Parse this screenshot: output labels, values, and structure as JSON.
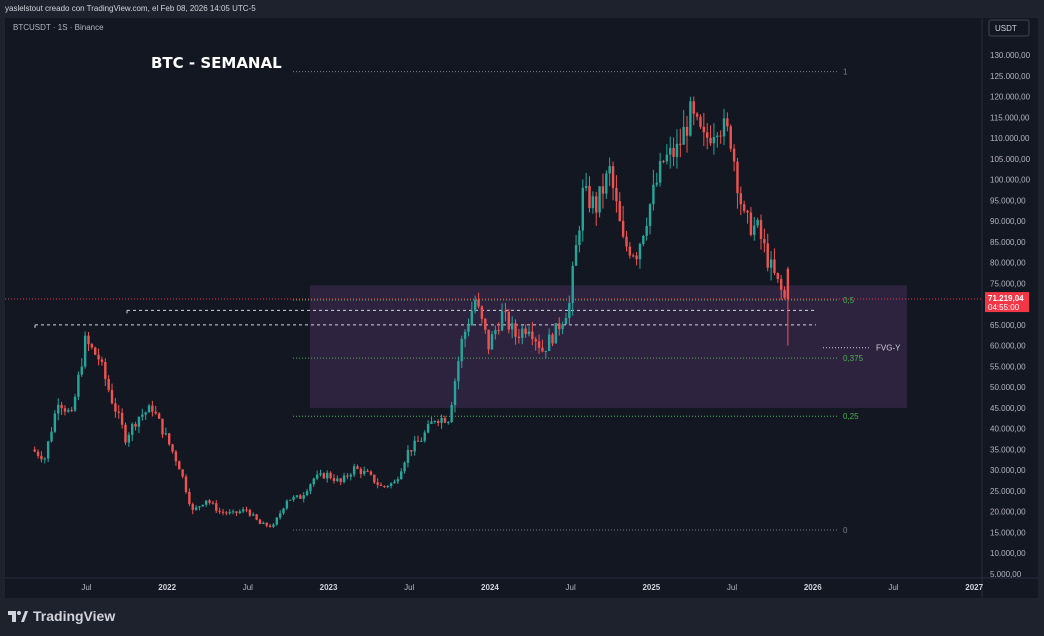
{
  "header": {
    "credit": "yaslelstout creado con TradingView.com, el Feb 08, 2026 14:05 UTC-5"
  },
  "chart": {
    "symbol_info": "BTCUSDT · 1S · Binance",
    "title": "BTC - SEMANAL",
    "currency_button": "USDT",
    "price_label": "71.219,04",
    "countdown_label": "04:55:00",
    "zone_label": "FVG-Y",
    "fib_levels": [
      {
        "label": "1",
        "price": 126000,
        "color": "#787b86"
      },
      {
        "label": "0,5",
        "price": 71000,
        "color": "#4caf50"
      },
      {
        "label": "0,375",
        "price": 57000,
        "color": "#4caf50"
      },
      {
        "label": "0,25",
        "price": 43000,
        "color": "#4caf50"
      },
      {
        "label": "0",
        "price": 15600,
        "color": "#787b86"
      }
    ],
    "y_ticks": [
      "130.000,00",
      "125.000,00",
      "120.000,00",
      "115.000,00",
      "110.000,00",
      "105.000,00",
      "100.000,00",
      "95.000,00",
      "90.000,00",
      "85.000,00",
      "80.000,00",
      "75.000,00",
      "70.000,00",
      "65.000,00",
      "60.000,00",
      "55.000,00",
      "50.000,00",
      "45.000,00",
      "40.000,00",
      "35.000,00",
      "30.000,00",
      "25.000,00",
      "20.000,00",
      "15.000,00",
      "10.000,00",
      "5.000,00"
    ],
    "x_ticks": [
      "Jul",
      "2022",
      "Jul",
      "2023",
      "Jul",
      "2024",
      "Jul",
      "2025",
      "Jul",
      "2026",
      "Jul",
      "2027"
    ],
    "colors": {
      "up": "#26a69a",
      "down": "#ef5350",
      "zone": "#6a3d7c",
      "background": "#131722"
    }
  },
  "chart_data": {
    "type": "candlestick",
    "title": "BTC - SEMANAL",
    "y_unit": "USDT",
    "ylim": [
      5000,
      130000
    ],
    "annotation": "FVG-Y",
    "zone": {
      "low": 45000,
      "high": 74500
    },
    "last_price": 71219.04,
    "close_path": [
      [
        "2021-06",
        35000
      ],
      [
        "2021-07",
        33000
      ],
      [
        "2021-08",
        47000
      ],
      [
        "2021-09",
        43000
      ],
      [
        "2021-10",
        61000
      ],
      [
        "2021-11",
        57000
      ],
      [
        "2021-12",
        47000
      ],
      [
        "2022-01",
        38000
      ],
      [
        "2022-02",
        43000
      ],
      [
        "2022-03",
        45000
      ],
      [
        "2022-04",
        38000
      ],
      [
        "2022-05",
        31000
      ],
      [
        "2022-06",
        20000
      ],
      [
        "2022-07",
        23000
      ],
      [
        "2022-08",
        20000
      ],
      [
        "2022-09",
        19500
      ],
      [
        "2022-10",
        20500
      ],
      [
        "2022-11",
        17000
      ],
      [
        "2022-12",
        16500
      ],
      [
        "2023-01",
        23000
      ],
      [
        "2023-02",
        23500
      ],
      [
        "2023-03",
        28000
      ],
      [
        "2023-04",
        29000
      ],
      [
        "2023-05",
        27000
      ],
      [
        "2023-06",
        30500
      ],
      [
        "2023-07",
        29000
      ],
      [
        "2023-08",
        26000
      ],
      [
        "2023-09",
        27000
      ],
      [
        "2023-10",
        34500
      ],
      [
        "2023-11",
        37500
      ],
      [
        "2023-12",
        42500
      ],
      [
        "2024-01",
        42500
      ],
      [
        "2024-02",
        61000
      ],
      [
        "2024-03",
        71000
      ],
      [
        "2024-04",
        60000
      ],
      [
        "2024-05",
        67500
      ],
      [
        "2024-06",
        62500
      ],
      [
        "2024-07",
        65000
      ],
      [
        "2024-08",
        59000
      ],
      [
        "2024-09",
        63500
      ],
      [
        "2024-10",
        70000
      ],
      [
        "2024-11",
        96500
      ],
      [
        "2024-12",
        93500
      ],
      [
        "2025-01",
        102000
      ],
      [
        "2025-02",
        84500
      ],
      [
        "2025-03",
        82500
      ],
      [
        "2025-04",
        94000
      ],
      [
        "2025-05",
        104500
      ],
      [
        "2025-06",
        107000
      ],
      [
        "2025-07",
        115500
      ],
      [
        "2025-08",
        109000
      ],
      [
        "2025-09",
        114000
      ],
      [
        "2025-10",
        110000
      ],
      [
        "2025-11",
        90000
      ],
      [
        "2025-12",
        88000
      ],
      [
        "2026-01",
        78500
      ],
      [
        "2026-02",
        71219
      ]
    ]
  }
}
